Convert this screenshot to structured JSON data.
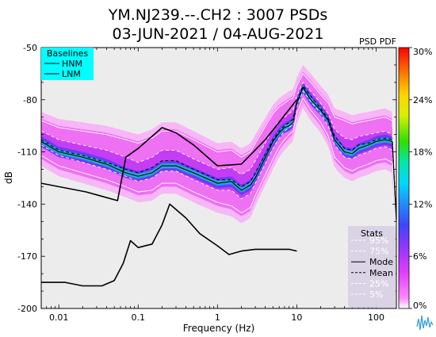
{
  "chart_data": {
    "type": "heatmap",
    "title": "YM.NJ239.--.CH2 : 3007 PSDs",
    "subtitle": "03-JUN-2021 / 04-AUG-2021",
    "panel_label": "PSD PDF",
    "xlabel": "Frequency (Hz)",
    "ylabel": "dB",
    "xscale": "log",
    "xlim": [
      0.006,
      180
    ],
    "ylim": [
      -200,
      -50
    ],
    "x_ticks": [
      {
        "value": 0.01,
        "label": "0.01"
      },
      {
        "value": 0.1,
        "label": "0.1"
      },
      {
        "value": 1,
        "label": "1"
      },
      {
        "value": 10,
        "label": "10"
      },
      {
        "value": 100,
        "label": "100"
      }
    ],
    "y_ticks": [
      {
        "value": -50,
        "label": "-50"
      },
      {
        "value": -80,
        "label": "-80"
      },
      {
        "value": -110,
        "label": "-110"
      },
      {
        "value": -140,
        "label": "-140"
      },
      {
        "value": -170,
        "label": "-170"
      },
      {
        "value": -200,
        "label": "-200"
      }
    ],
    "colorbar": {
      "ticks": [
        {
          "value": 0,
          "label": "0%"
        },
        {
          "value": 6,
          "label": "6%"
        },
        {
          "value": 12,
          "label": "12%"
        },
        {
          "value": 18,
          "label": "18%"
        },
        {
          "value": 24,
          "label": "24%"
        },
        {
          "value": 30,
          "label": "30%"
        }
      ],
      "max": 30
    },
    "baselines_legend": {
      "title": "Baselines",
      "entries": [
        "HNM",
        "LNM"
      ],
      "color": "#00ffff"
    },
    "stats_legend": {
      "title": "Stats",
      "entries": [
        {
          "label": "95%",
          "style": "dashed",
          "color": "#ffffff"
        },
        {
          "label": "75%",
          "style": "dashed",
          "color": "#ffffff"
        },
        {
          "label": "Mode",
          "style": "solid",
          "color": "#000000"
        },
        {
          "label": "Mean",
          "style": "dashed",
          "color": "#000000"
        },
        {
          "label": "25%",
          "style": "dashed",
          "color": "#ffffff"
        },
        {
          "label": "5%",
          "style": "dashed",
          "color": "#ffffff"
        }
      ]
    },
    "series": [
      {
        "name": "HNM",
        "x": [
          0.006,
          0.022,
          0.055,
          0.07,
          0.1,
          0.2,
          0.3,
          0.5,
          1,
          2,
          4,
          10
        ],
        "y": [
          -128,
          -133,
          -138,
          -113,
          -108,
          -96,
          -99,
          -106,
          -118,
          -117,
          -103,
          -80
        ]
      },
      {
        "name": "LNM",
        "x": [
          0.006,
          0.012,
          0.02,
          0.035,
          0.05,
          0.065,
          0.08,
          0.1,
          0.15,
          0.2,
          0.25,
          0.4,
          0.6,
          1,
          1.4,
          2,
          3,
          5,
          8,
          10
        ],
        "y": [
          -185,
          -185,
          -187,
          -187,
          -184,
          -174,
          -161,
          -165,
          -163,
          -152,
          -140,
          -148,
          -157,
          -164,
          -169,
          -167,
          -166,
          -166,
          -166,
          -167
        ]
      },
      {
        "name": "Mode",
        "x": [
          0.006,
          0.01,
          0.02,
          0.04,
          0.07,
          0.1,
          0.15,
          0.2,
          0.3,
          0.5,
          1,
          1.5,
          2,
          2.6,
          3,
          5,
          6,
          7,
          8,
          9,
          10,
          12,
          15,
          20,
          25,
          30,
          40,
          50,
          60,
          80,
          100,
          130,
          160,
          180
        ],
        "y": [
          -104,
          -110,
          -113,
          -117,
          -122,
          -124,
          -122,
          -118,
          -118,
          -122,
          -128,
          -127,
          -132,
          -129,
          -125,
          -104,
          -99,
          -96,
          -95,
          -93,
          -82,
          -73,
          -80,
          -86,
          -92,
          -103,
          -110,
          -111,
          -108,
          -106,
          -104,
          -103,
          -104,
          -150
        ]
      },
      {
        "name": "Mean",
        "x": [
          0.006,
          0.01,
          0.02,
          0.04,
          0.07,
          0.1,
          0.15,
          0.2,
          0.3,
          0.5,
          1,
          1.5,
          2,
          2.6,
          3,
          5,
          6,
          7,
          8,
          9,
          10,
          12,
          15,
          20,
          25,
          30,
          40,
          50,
          60,
          80,
          100,
          130,
          160,
          180
        ],
        "y": [
          -103,
          -109,
          -112,
          -116,
          -120,
          -122,
          -119,
          -115,
          -115,
          -120,
          -126,
          -126,
          -130,
          -127,
          -122,
          -103,
          -98,
          -95,
          -93,
          -91,
          -81,
          -72,
          -78,
          -85,
          -91,
          -101,
          -108,
          -109,
          -106,
          -105,
          -103,
          -102,
          -103,
          -149
        ]
      },
      {
        "name": "95%",
        "x": [
          0.006,
          0.01,
          0.02,
          0.04,
          0.07,
          0.1,
          0.15,
          0.2,
          0.3,
          0.5,
          1,
          1.5,
          2,
          2.6,
          3,
          5,
          6,
          7,
          8,
          9,
          10,
          12,
          15,
          20,
          25,
          30,
          40,
          50,
          60,
          80,
          100,
          130,
          160,
          180
        ],
        "y": [
          -92,
          -96,
          -98,
          -100,
          -103,
          -105,
          -102,
          -98,
          -98,
          -103,
          -110,
          -109,
          -113,
          -110,
          -105,
          -88,
          -84,
          -82,
          -80,
          -79,
          -72,
          -65,
          -70,
          -77,
          -82,
          -90,
          -92,
          -94,
          -93,
          -92,
          -91,
          -90,
          -92,
          -140
        ]
      },
      {
        "name": "75%",
        "x": [
          0.006,
          0.01,
          0.02,
          0.04,
          0.07,
          0.1,
          0.15,
          0.2,
          0.3,
          0.5,
          1,
          1.5,
          2,
          2.6,
          3,
          5,
          6,
          7,
          8,
          9,
          10,
          12,
          15,
          20,
          25,
          30,
          40,
          50,
          60,
          80,
          100,
          130,
          160,
          180
        ],
        "y": [
          -98,
          -103,
          -106,
          -109,
          -113,
          -116,
          -113,
          -109,
          -109,
          -114,
          -120,
          -119,
          -123,
          -120,
          -115,
          -97,
          -92,
          -90,
          -88,
          -86,
          -78,
          -70,
          -75,
          -82,
          -88,
          -97,
          -102,
          -103,
          -101,
          -100,
          -99,
          -98,
          -100,
          -145
        ]
      },
      {
        "name": "25%",
        "x": [
          0.006,
          0.01,
          0.02,
          0.04,
          0.07,
          0.1,
          0.15,
          0.2,
          0.3,
          0.5,
          1,
          1.5,
          2,
          2.6,
          3,
          5,
          6,
          7,
          8,
          9,
          10,
          12,
          15,
          20,
          25,
          30,
          40,
          50,
          60,
          80,
          100,
          130,
          160,
          180
        ],
        "y": [
          -106,
          -112,
          -116,
          -120,
          -124,
          -127,
          -125,
          -121,
          -121,
          -126,
          -132,
          -132,
          -137,
          -134,
          -128,
          -108,
          -102,
          -98,
          -96,
          -94,
          -84,
          -75,
          -81,
          -88,
          -95,
          -106,
          -113,
          -114,
          -112,
          -110,
          -108,
          -107,
          -109,
          -153
        ]
      },
      {
        "name": "5%",
        "x": [
          0.006,
          0.01,
          0.02,
          0.04,
          0.07,
          0.1,
          0.15,
          0.2,
          0.3,
          0.5,
          1,
          1.5,
          2,
          2.6,
          3,
          5,
          6,
          7,
          8,
          9,
          10,
          12,
          15,
          20,
          25,
          30,
          40,
          50,
          60,
          80,
          100,
          130,
          160,
          180
        ],
        "y": [
          -112,
          -118,
          -122,
          -126,
          -130,
          -133,
          -132,
          -128,
          -128,
          -133,
          -139,
          -141,
          -145,
          -142,
          -135,
          -114,
          -107,
          -103,
          -100,
          -98,
          -88,
          -79,
          -86,
          -93,
          -101,
          -113,
          -119,
          -121,
          -119,
          -117,
          -115,
          -114,
          -116,
          -158
        ]
      }
    ]
  }
}
